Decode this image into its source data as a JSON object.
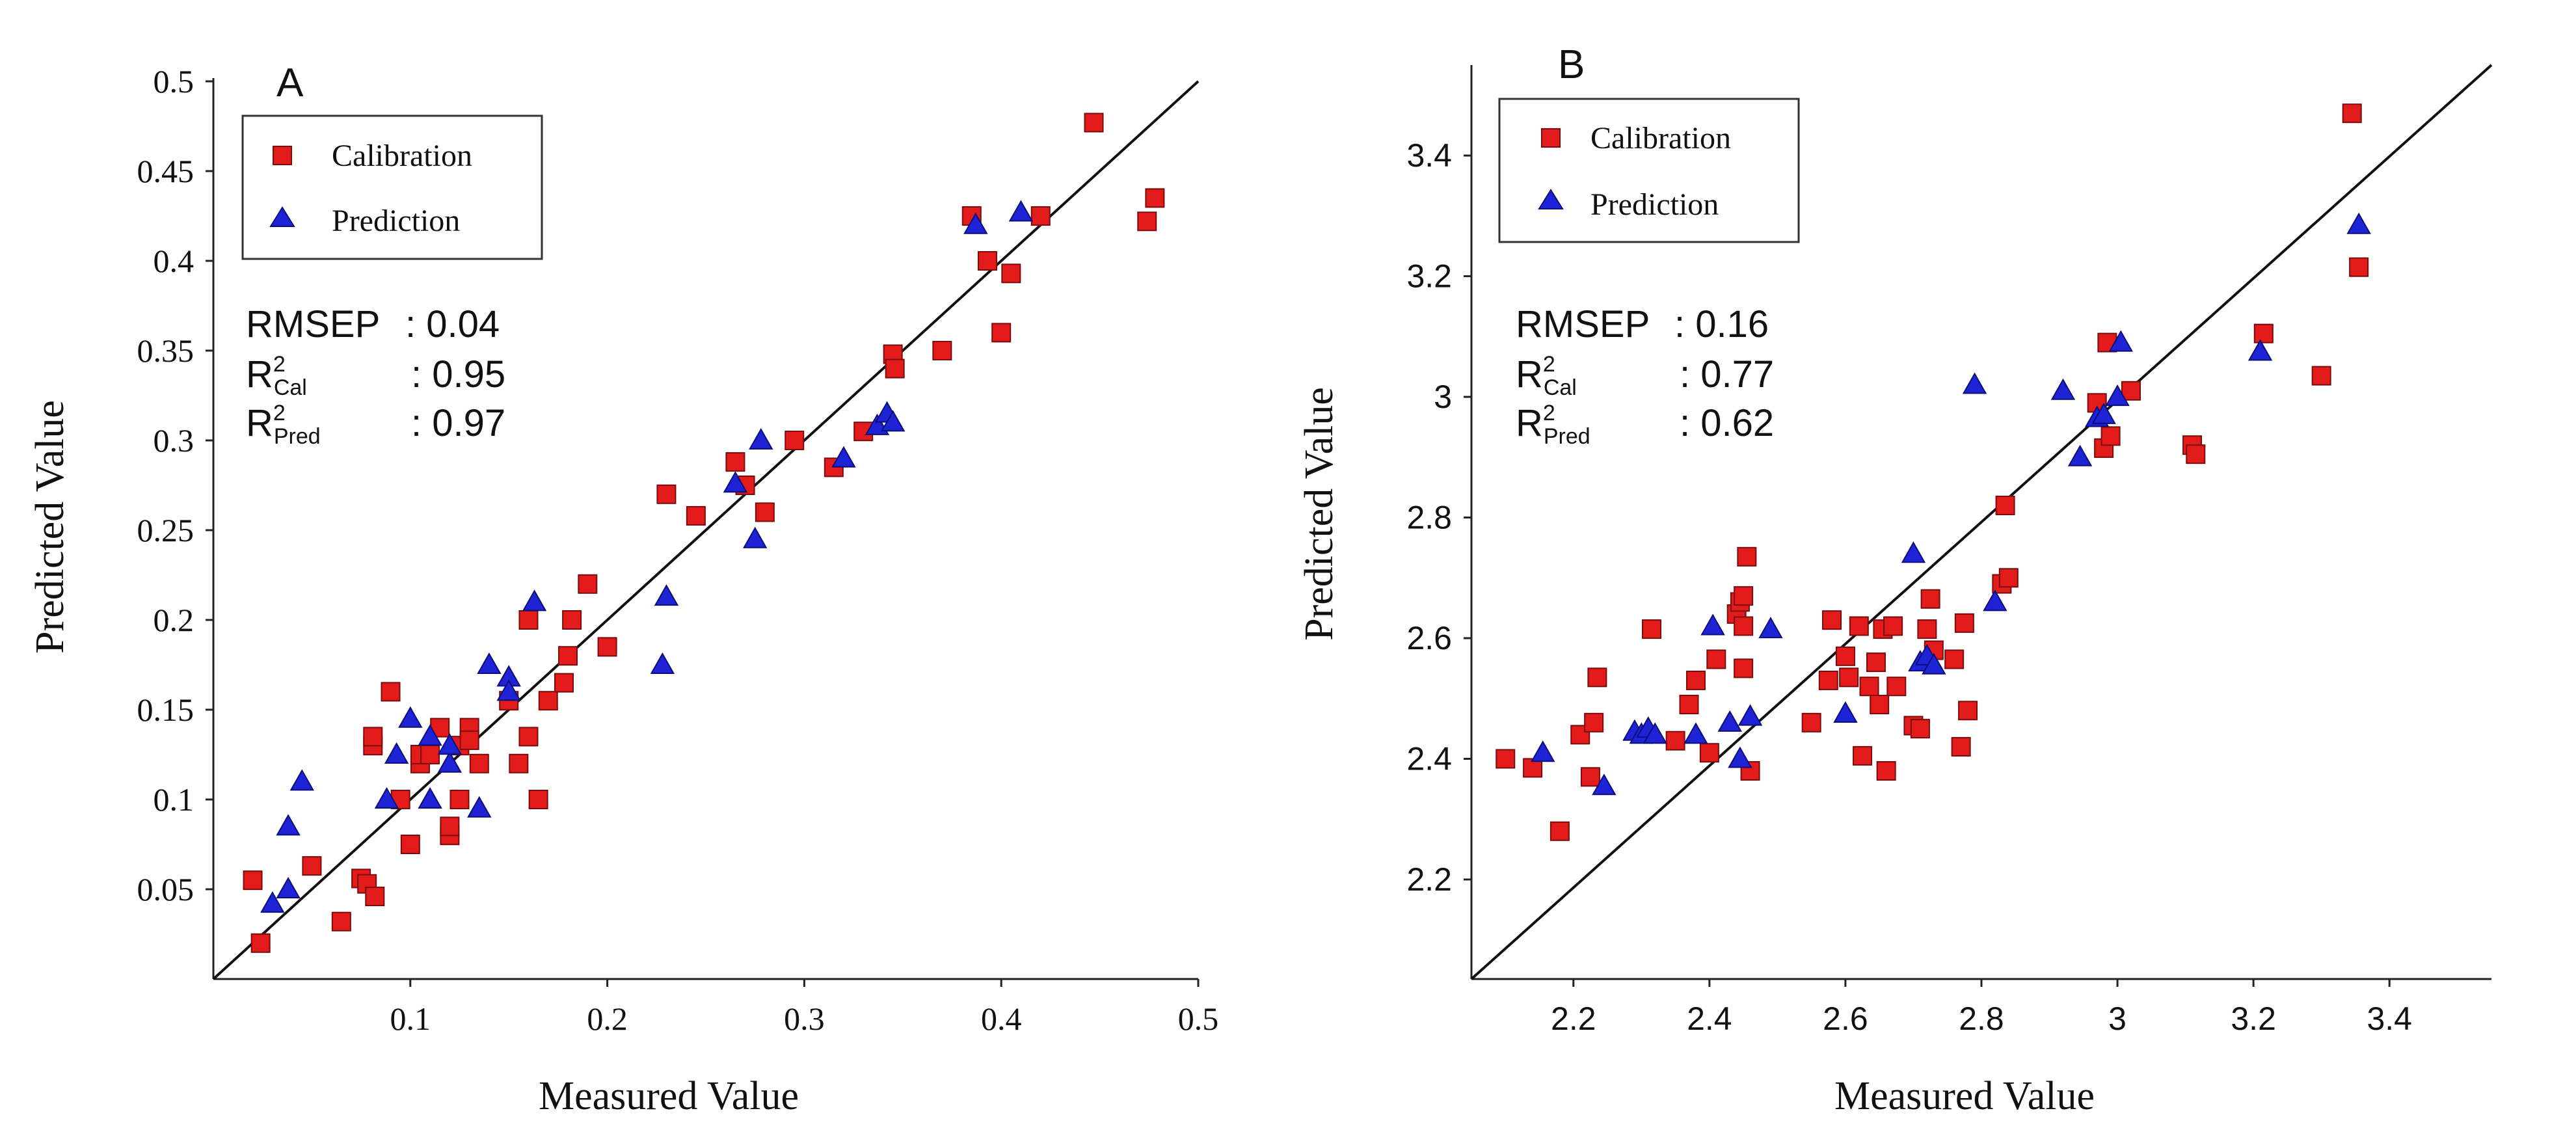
{
  "chart_data": [
    {
      "type": "scatter",
      "panel": "A",
      "xlabel": "Measured Value",
      "ylabel": "Predicted Value",
      "xlim": [
        0,
        0.5
      ],
      "ylim": [
        0,
        0.5
      ],
      "xticks": [
        0.1,
        0.2,
        0.3,
        0.4,
        0.5
      ],
      "xtick_labels": [
        "0.1",
        "0.2",
        "0.3",
        "0.4",
        "0.5"
      ],
      "yticks": [
        0.05,
        0.1,
        0.15,
        0.2,
        0.25,
        0.3,
        0.35,
        0.4,
        0.45,
        0.5
      ],
      "ytick_labels": [
        "0.05",
        "0.1",
        "0.15",
        "0.2",
        "0.25",
        "0.3",
        "0.35",
        "0.4",
        "0.45",
        "0.5"
      ],
      "legend": {
        "location": "top-left",
        "entries": [
          "Calibration",
          "Prediction"
        ]
      },
      "stats": {
        "rmsep_label": "RMSEP",
        "rmsep_value": ": 0.04",
        "r2cal_base": "R",
        "r2cal_sup": "2",
        "r2cal_sub": "Cal",
        "r2cal_value": ": 0.95",
        "r2pred_base": "R",
        "r2pred_sup": "2",
        "r2pred_sub": "Pred",
        "r2pred_value": ": 0.97"
      },
      "reference_line": [
        [
          0,
          0
        ],
        [
          0.5,
          0.5
        ]
      ],
      "series": [
        {
          "name": "Calibration",
          "marker": "square",
          "color": "#e41b1b",
          "points": [
            [
              0.02,
              0.055
            ],
            [
              0.024,
              0.02
            ],
            [
              0.05,
              0.063
            ],
            [
              0.065,
              0.032
            ],
            [
              0.075,
              0.056
            ],
            [
              0.078,
              0.053
            ],
            [
              0.082,
              0.046
            ],
            [
              0.081,
              0.13
            ],
            [
              0.081,
              0.135
            ],
            [
              0.09,
              0.16
            ],
            [
              0.095,
              0.1
            ],
            [
              0.1,
              0.075
            ],
            [
              0.105,
              0.12
            ],
            [
              0.105,
              0.125
            ],
            [
              0.11,
              0.125
            ],
            [
              0.115,
              0.14
            ],
            [
              0.12,
              0.08
            ],
            [
              0.12,
              0.085
            ],
            [
              0.125,
              0.1
            ],
            [
              0.125,
              0.13
            ],
            [
              0.13,
              0.14
            ],
            [
              0.13,
              0.133
            ],
            [
              0.135,
              0.12
            ],
            [
              0.15,
              0.155
            ],
            [
              0.155,
              0.12
            ],
            [
              0.16,
              0.135
            ],
            [
              0.16,
              0.2
            ],
            [
              0.165,
              0.1
            ],
            [
              0.17,
              0.155
            ],
            [
              0.178,
              0.165
            ],
            [
              0.18,
              0.18
            ],
            [
              0.182,
              0.2
            ],
            [
              0.19,
              0.22
            ],
            [
              0.2,
              0.185
            ],
            [
              0.23,
              0.27
            ],
            [
              0.245,
              0.258
            ],
            [
              0.265,
              0.288
            ],
            [
              0.27,
              0.275
            ],
            [
              0.28,
              0.26
            ],
            [
              0.295,
              0.3
            ],
            [
              0.315,
              0.285
            ],
            [
              0.33,
              0.305
            ],
            [
              0.345,
              0.348
            ],
            [
              0.346,
              0.34
            ],
            [
              0.37,
              0.35
            ],
            [
              0.385,
              0.425
            ],
            [
              0.393,
              0.4
            ],
            [
              0.4,
              0.36
            ],
            [
              0.405,
              0.393
            ],
            [
              0.42,
              0.425
            ],
            [
              0.447,
              0.477
            ],
            [
              0.474,
              0.422
            ],
            [
              0.478,
              0.435
            ]
          ]
        },
        {
          "name": "Prediction",
          "marker": "triangle",
          "color": "#1f23d6",
          "points": [
            [
              0.03,
              0.042
            ],
            [
              0.038,
              0.05
            ],
            [
              0.038,
              0.085
            ],
            [
              0.045,
              0.11
            ],
            [
              0.088,
              0.1
            ],
            [
              0.093,
              0.125
            ],
            [
              0.1,
              0.145
            ],
            [
              0.11,
              0.1
            ],
            [
              0.11,
              0.135
            ],
            [
              0.12,
              0.12
            ],
            [
              0.12,
              0.13
            ],
            [
              0.135,
              0.095
            ],
            [
              0.14,
              0.175
            ],
            [
              0.15,
              0.168
            ],
            [
              0.15,
              0.16
            ],
            [
              0.163,
              0.21
            ],
            [
              0.228,
              0.175
            ],
            [
              0.23,
              0.213
            ],
            [
              0.265,
              0.276
            ],
            [
              0.275,
              0.245
            ],
            [
              0.278,
              0.3
            ],
            [
              0.32,
              0.29
            ],
            [
              0.337,
              0.308
            ],
            [
              0.342,
              0.315
            ],
            [
              0.345,
              0.31
            ],
            [
              0.387,
              0.42
            ],
            [
              0.41,
              0.427
            ]
          ]
        }
      ]
    },
    {
      "type": "scatter",
      "panel": "B",
      "xlabel": "Measured Value",
      "ylabel": "Predicted Value",
      "xlim": [
        2.05,
        3.55
      ],
      "ylim": [
        2.035,
        3.55
      ],
      "xticks": [
        2.2,
        2.4,
        2.6,
        2.8,
        3.0,
        3.2,
        3.4
      ],
      "xtick_labels": [
        "2.2",
        "2.4",
        "2.6",
        "2.8",
        "3",
        "3.2",
        "3.4"
      ],
      "yticks": [
        2.2,
        2.4,
        2.6,
        2.8,
        3.0,
        3.2,
        3.4
      ],
      "ytick_labels": [
        "2.2",
        "2.4",
        "2.6",
        "2.8",
        "3",
        "3.2",
        "3.4"
      ],
      "legend": {
        "location": "top-left",
        "entries": [
          "Calibration",
          "Prediction"
        ]
      },
      "stats": {
        "rmsep_label": "RMSEP",
        "rmsep_value": ": 0.16",
        "r2cal_base": "R",
        "r2cal_sup": "2",
        "r2cal_sub": "Cal",
        "r2cal_value": ": 0.77",
        "r2pred_base": "R",
        "r2pred_sup": "2",
        "r2pred_sub": "Pred",
        "r2pred_value": ": 0.62"
      },
      "reference_line": [
        [
          2.05,
          2.035
        ],
        [
          3.55,
          3.55
        ]
      ],
      "series": [
        {
          "name": "Calibration",
          "marker": "square",
          "color": "#e41b1b",
          "points": [
            [
              2.1,
              2.4
            ],
            [
              2.14,
              2.385
            ],
            [
              2.18,
              2.28
            ],
            [
              2.21,
              2.44
            ],
            [
              2.225,
              2.37
            ],
            [
              2.23,
              2.46
            ],
            [
              2.235,
              2.535
            ],
            [
              2.315,
              2.615
            ],
            [
              2.35,
              2.43
            ],
            [
              2.37,
              2.49
            ],
            [
              2.38,
              2.53
            ],
            [
              2.4,
              2.41
            ],
            [
              2.41,
              2.565
            ],
            [
              2.44,
              2.64
            ],
            [
              2.445,
              2.66
            ],
            [
              2.45,
              2.67
            ],
            [
              2.45,
              2.62
            ],
            [
              2.45,
              2.55
            ],
            [
              2.455,
              2.735
            ],
            [
              2.46,
              2.38
            ],
            [
              2.55,
              2.46
            ],
            [
              2.575,
              2.53
            ],
            [
              2.58,
              2.63
            ],
            [
              2.6,
              2.57
            ],
            [
              2.605,
              2.535
            ],
            [
              2.62,
              2.62
            ],
            [
              2.625,
              2.405
            ],
            [
              2.635,
              2.52
            ],
            [
              2.645,
              2.56
            ],
            [
              2.65,
              2.49
            ],
            [
              2.655,
              2.615
            ],
            [
              2.66,
              2.38
            ],
            [
              2.67,
              2.62
            ],
            [
              2.675,
              2.52
            ],
            [
              2.7,
              2.455
            ],
            [
              2.71,
              2.45
            ],
            [
              2.72,
              2.615
            ],
            [
              2.725,
              2.665
            ],
            [
              2.73,
              2.58
            ],
            [
              2.76,
              2.565
            ],
            [
              2.77,
              2.42
            ],
            [
              2.775,
              2.625
            ],
            [
              2.78,
              2.48
            ],
            [
              2.83,
              2.69
            ],
            [
              2.835,
              2.82
            ],
            [
              2.84,
              2.7
            ],
            [
              2.97,
              2.99
            ],
            [
              2.98,
              2.915
            ],
            [
              2.985,
              3.09
            ],
            [
              2.99,
              2.935
            ],
            [
              3.02,
              3.01
            ],
            [
              3.11,
              2.92
            ],
            [
              3.115,
              2.905
            ],
            [
              3.215,
              3.105
            ],
            [
              3.3,
              3.035
            ],
            [
              3.345,
              3.47
            ],
            [
              3.355,
              3.215
            ]
          ]
        },
        {
          "name": "Prediction",
          "marker": "triangle",
          "color": "#1f23d6",
          "points": [
            [
              2.155,
              2.41
            ],
            [
              2.245,
              2.355
            ],
            [
              2.29,
              2.445
            ],
            [
              2.3,
              2.44
            ],
            [
              2.31,
              2.45
            ],
            [
              2.32,
              2.44
            ],
            [
              2.38,
              2.44
            ],
            [
              2.405,
              2.62
            ],
            [
              2.43,
              2.46
            ],
            [
              2.445,
              2.4
            ],
            [
              2.46,
              2.47
            ],
            [
              2.49,
              2.615
            ],
            [
              2.6,
              2.475
            ],
            [
              2.7,
              2.74
            ],
            [
              2.71,
              2.56
            ],
            [
              2.72,
              2.57
            ],
            [
              2.73,
              2.555
            ],
            [
              2.79,
              3.02
            ],
            [
              2.82,
              2.66
            ],
            [
              2.92,
              3.01
            ],
            [
              2.945,
              2.9
            ],
            [
              2.97,
              2.965
            ],
            [
              2.98,
              2.97
            ],
            [
              3.0,
              3.0
            ],
            [
              3.005,
              3.09
            ],
            [
              3.21,
              3.075
            ],
            [
              3.355,
              3.285
            ]
          ]
        }
      ]
    }
  ]
}
